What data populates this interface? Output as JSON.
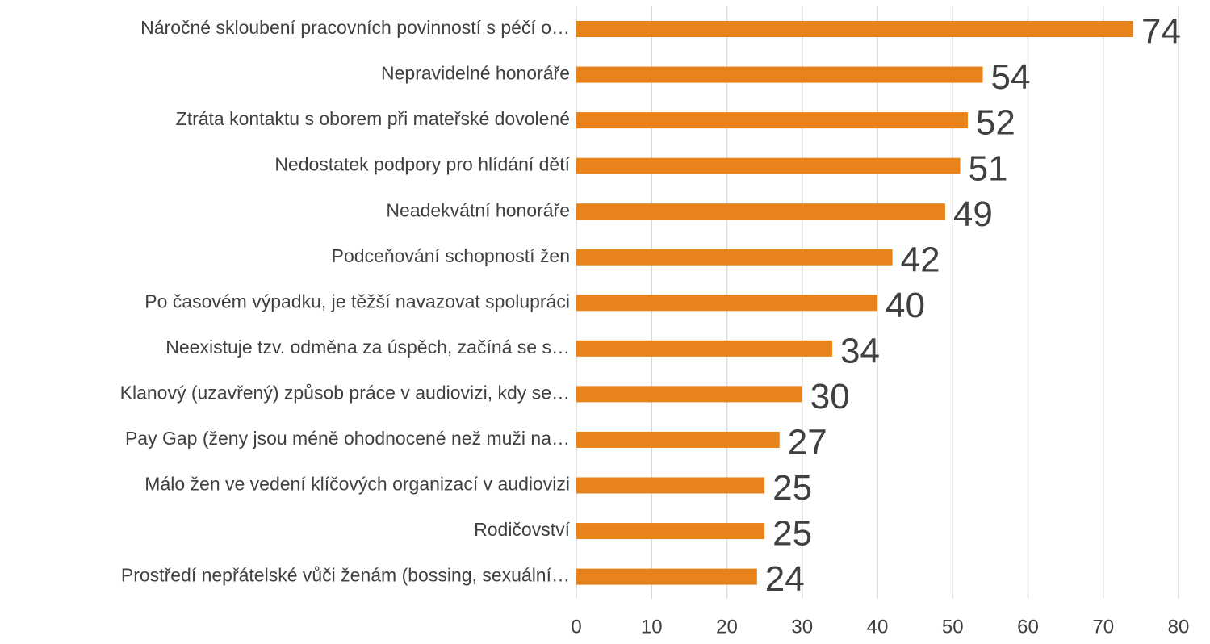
{
  "chart_data": {
    "type": "barh",
    "categories": [
      "Náročné skloubení pracovních povinností s péčí o…",
      "Nepravidelné honoráře",
      "Ztráta kontaktu s oborem při mateřské dovolené",
      "Nedostatek podpory pro hlídání dětí",
      "Neadekvátní honoráře",
      "Podceňování schopností žen",
      "Po časovém výpadku, je těžší navazovat spolupráci",
      "Neexistuje tzv. odměna za úspěch, začíná se s…",
      "Klanový (uzavřený) způsob práce v audiovizi, kdy se…",
      "Pay Gap (ženy jsou méně ohodnocené než muži na…",
      "Málo žen ve vedení klíčových organizací v audiovizi",
      "Rodičovství",
      "Prostředí nepřátelské vůči ženám (bossing, sexuální…"
    ],
    "values": [
      74,
      54,
      52,
      51,
      49,
      42,
      40,
      34,
      30,
      27,
      25,
      25,
      24
    ],
    "color": "#e8821a",
    "xlim": [
      0,
      80
    ],
    "xticks": [
      0,
      10,
      20,
      30,
      40,
      50,
      60,
      70,
      80
    ],
    "grid": true
  }
}
